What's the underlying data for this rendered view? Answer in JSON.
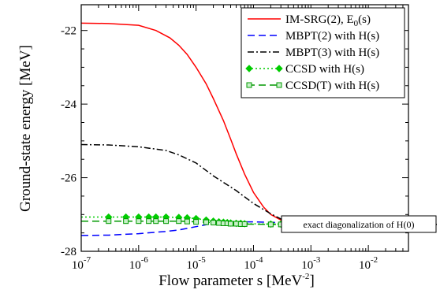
{
  "chart_data": {
    "type": "line",
    "xlabel": "Flow parameter s [MeV",
    "xlabel_sup": "-2",
    "xlabel_tail": "]",
    "ylabel": "Ground-state energy [MeV]",
    "x_scale": "log",
    "xlim": [
      1e-07,
      0.05
    ],
    "ylim": [
      -28.0,
      -21.3
    ],
    "x_ticks": [
      {
        "value": 1e-07,
        "base": "10",
        "exp": "-7"
      },
      {
        "value": 1e-06,
        "base": "10",
        "exp": "-6"
      },
      {
        "value": 1e-05,
        "base": "10",
        "exp": "-5"
      },
      {
        "value": 0.0001,
        "base": "10",
        "exp": "-4"
      },
      {
        "value": 0.001,
        "base": "10",
        "exp": "-3"
      },
      {
        "value": 0.01,
        "base": "10",
        "exp": "-2"
      }
    ],
    "y_ticks": [
      {
        "value": -22,
        "label": "-22"
      },
      {
        "value": -24,
        "label": "-24"
      },
      {
        "value": -26,
        "label": "-26"
      },
      {
        "value": -28,
        "label": "-28"
      }
    ],
    "grid": false,
    "legend_position": "top-right",
    "series": [
      {
        "name": "IM-SRG(2), E",
        "name_sub": "0",
        "name_tail": "(s)",
        "color": "#ff0000",
        "dash": "solid",
        "marker": "none",
        "x": [
          1e-07,
          3e-07,
          1e-06,
          2e-06,
          3.5e-06,
          5e-06,
          7e-06,
          1e-05,
          1.5e-05,
          2e-05,
          3e-05,
          4e-05,
          5e-05,
          7e-05,
          0.0001,
          0.00015,
          0.0002,
          0.0003,
          0.0005,
          0.0007,
          0.001,
          0.002,
          0.005,
          0.01,
          0.05
        ],
        "y": [
          -21.8,
          -21.81,
          -21.86,
          -22.0,
          -22.2,
          -22.4,
          -22.65,
          -23.0,
          -23.45,
          -23.85,
          -24.45,
          -24.95,
          -25.35,
          -25.9,
          -26.4,
          -26.8,
          -27.0,
          -27.15,
          -27.24,
          -27.26,
          -27.27,
          -27.27,
          -27.27,
          -27.27,
          -27.27
        ]
      },
      {
        "name": "MBPT(2) with H(s)",
        "color": "#0000ff",
        "dash": "dashed",
        "marker": "none",
        "x": [
          1e-07,
          3e-07,
          1e-06,
          3e-06,
          5e-06,
          1e-05,
          2e-05,
          5e-05,
          0.0001,
          0.0003,
          0.001,
          0.05
        ],
        "y": [
          -27.57,
          -27.56,
          -27.52,
          -27.46,
          -27.42,
          -27.33,
          -27.24,
          -27.2,
          -27.2,
          -27.22,
          -27.26,
          -27.27
        ]
      },
      {
        "name": "MBPT(3) with H(s)",
        "color": "#000000",
        "dash": "dashdot",
        "marker": "none",
        "x": [
          1e-07,
          3e-07,
          1e-06,
          3e-06,
          5e-06,
          1e-05,
          2e-05,
          5e-05,
          0.0001,
          0.0002,
          0.0003,
          0.0005,
          0.001,
          0.05
        ],
        "y": [
          -25.1,
          -25.11,
          -25.16,
          -25.26,
          -25.38,
          -25.6,
          -25.95,
          -26.35,
          -26.7,
          -26.98,
          -27.12,
          -27.22,
          -27.26,
          -27.27
        ]
      },
      {
        "name": "CCSD with H(s)",
        "color": "#00cc00",
        "dash": "dotted",
        "marker": "diamond",
        "x": [
          1e-07,
          3e-07,
          6e-07,
          1e-06,
          1.5e-06,
          2e-06,
          3e-06,
          5e-06,
          7e-06,
          1e-05,
          1.5e-05,
          2e-05,
          2.5e-05,
          3e-05,
          3.5e-05,
          4e-05,
          5e-05,
          6e-05,
          7e-05,
          0.0002,
          0.0003,
          0.0005,
          0.001,
          0.002,
          0.003,
          0.005,
          0.007,
          0.01,
          0.015,
          0.02,
          0.025,
          0.03,
          0.035,
          0.04,
          0.045,
          0.05
        ],
        "y": [
          -27.07,
          -27.07,
          -27.07,
          -27.07,
          -27.07,
          -27.07,
          -27.07,
          -27.08,
          -27.09,
          -27.11,
          -27.15,
          -27.18,
          -27.2,
          -27.21,
          -27.22,
          -27.23,
          -27.24,
          -27.24,
          -27.25,
          -27.26,
          -27.26,
          -27.27,
          -27.27,
          -27.27,
          -27.27,
          -27.27,
          -27.27,
          -27.27,
          -27.27,
          -27.27,
          -27.27,
          -27.27,
          -27.27,
          -27.27,
          -27.27,
          -27.27
        ]
      },
      {
        "name": "CCSD(T) with H(s)",
        "color": "#009900",
        "dash": "dashed",
        "marker": "square",
        "x": [
          1e-07,
          3e-07,
          6e-07,
          1e-06,
          1.5e-06,
          2e-06,
          3e-06,
          5e-06,
          7e-06,
          1e-05,
          1.5e-05,
          2e-05,
          2.5e-05,
          3e-05,
          3.5e-05,
          4e-05,
          5e-05,
          6e-05,
          7e-05,
          0.0002,
          0.0003,
          0.0005,
          0.001,
          0.002,
          0.003,
          0.005,
          0.007,
          0.01,
          0.015,
          0.02,
          0.025,
          0.03,
          0.035,
          0.04,
          0.045,
          0.05
        ],
        "y": [
          -27.18,
          -27.18,
          -27.18,
          -27.18,
          -27.18,
          -27.18,
          -27.18,
          -27.18,
          -27.19,
          -27.2,
          -27.21,
          -27.22,
          -27.23,
          -27.24,
          -27.24,
          -27.25,
          -27.25,
          -27.26,
          -27.26,
          -27.27,
          -27.27,
          -27.27,
          -27.27,
          -27.27,
          -27.27,
          -27.27,
          -27.27,
          -27.27,
          -27.27,
          -27.27,
          -27.27,
          -27.27,
          -27.27,
          -27.27,
          -27.27,
          -27.27
        ]
      }
    ],
    "annotation": {
      "text": "exact diagonalization of H(0)",
      "value": -27.27
    }
  }
}
